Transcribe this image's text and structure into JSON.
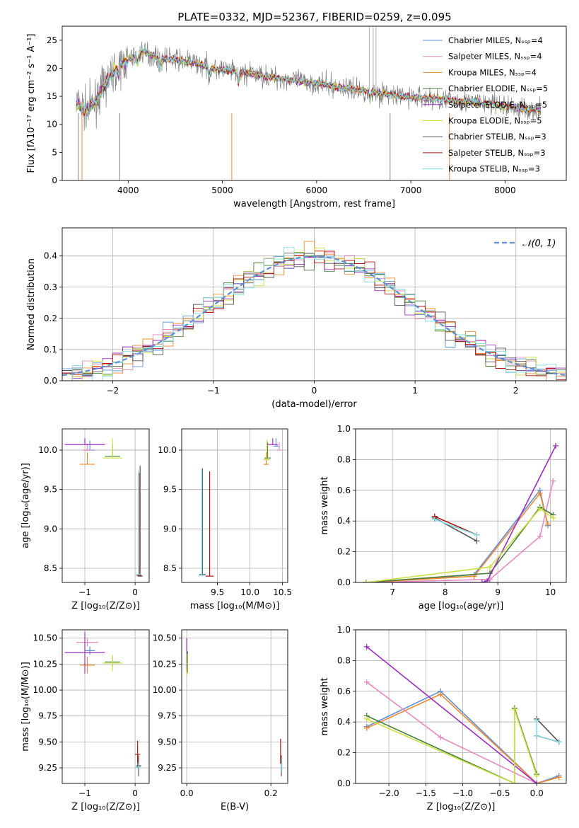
{
  "chart_data": [
    {
      "id": "spectrum",
      "type": "line",
      "title": "PLATE=0332, MJD=52367, FIBERID=0259, z=0.095",
      "xlabel": "wavelength [Angstrom, rest frame]",
      "ylabel": "Flux [fλ10⁻¹⁷ erg cm⁻² s⁻¹ A⁻¹]",
      "xlim": [
        3300,
        8650
      ],
      "ylim": [
        0,
        27.5
      ],
      "xticks": [
        4000,
        5000,
        6000,
        7000,
        8000
      ],
      "yticks": [
        0,
        5,
        10,
        15,
        20,
        25
      ],
      "legend_position": "upper right",
      "grid": false,
      "data_color": "#808080",
      "series": [
        {
          "name": "Chabrier MILES, Nₛₛₚ=4",
          "color": "#5b8fd8"
        },
        {
          "name": "Salpeter MILES, Nₛₛₚ=4",
          "color": "#e58ac0"
        },
        {
          "name": "Kroupa MILES, Nₛₛₚ=4",
          "color": "#f08a30"
        },
        {
          "name": "Chabrier ELODIE, Nₛₛₚ=5",
          "color": "#4a7d3c"
        },
        {
          "name": "Salpeter ELODIE, Nₛₛₚ=5",
          "color": "#9b30c0"
        },
        {
          "name": "Kroupa ELODIE, Nₛₛₚ=5",
          "color": "#c8e040"
        },
        {
          "name": "Chabrier STELIB, Nₛₛₚ=3",
          "color": "#555555"
        },
        {
          "name": "Salpeter STELIB, Nₛₛₚ=3",
          "color": "#b01010"
        },
        {
          "name": "Kroupa STELIB, Nₛₛₚ=3",
          "color": "#7fdde4"
        }
      ],
      "envelope": {
        "x": [
          3450,
          3550,
          3650,
          3750,
          3850,
          3950,
          4050,
          4150,
          4300,
          4500,
          4700,
          4900,
          5100,
          5300,
          5500,
          5700,
          5900,
          6100,
          6300,
          6500,
          6700,
          6900,
          7100,
          7300,
          7500,
          7700,
          7900,
          8100,
          8300
        ],
        "y": [
          14,
          12.5,
          14,
          17,
          19.5,
          21,
          22,
          23,
          22,
          21.5,
          21,
          20,
          19.5,
          19,
          18.5,
          18,
          17.5,
          17,
          16.5,
          16,
          15.5,
          15,
          14.8,
          14.5,
          14.2,
          14,
          13.5,
          13,
          12.5
        ]
      }
    },
    {
      "id": "residuals",
      "type": "line",
      "xlabel": "(data-model)/error",
      "ylabel": "Normed distribution",
      "xlim": [
        -2.5,
        2.5
      ],
      "ylim": [
        0,
        0.49
      ],
      "xticks": [
        -2,
        -1,
        0,
        1,
        2
      ],
      "yticks": [
        0.0,
        0.1,
        0.2,
        0.3,
        0.4
      ],
      "grid": true,
      "legend_position": "upper right",
      "reference_curve": {
        "name": "𝒩(0, 1)",
        "color": "#5b8fd8",
        "style": "dashed"
      },
      "bin_width": 0.1
    },
    {
      "id": "age-vs-Z",
      "type": "scatter",
      "xlabel": "Z [log₁₀(Z/Z⊙)]",
      "ylabel": "age  [log₁₀(age/yr)]",
      "xlim": [
        -1.45,
        0.28
      ],
      "ylim": [
        8.32,
        10.27
      ],
      "xticks": [
        -1,
        0
      ],
      "yticks": [
        8.5,
        9.0,
        9.5,
        10.0
      ],
      "grid": true,
      "points": [
        {
          "s": 0,
          "x": -0.9,
          "xe": 0.1,
          "y": 10.0,
          "ye": 0.12
        },
        {
          "s": 1,
          "x": -0.95,
          "xe": 0.1,
          "y": 10.0,
          "ye": 0.08
        },
        {
          "s": 2,
          "x": -0.95,
          "xe": 0.15,
          "y": 9.82,
          "ye": 0.15
        },
        {
          "s": 3,
          "x": -0.45,
          "xe": 0.15,
          "y": 9.92,
          "ye": 0.15
        },
        {
          "s": 4,
          "x": -1.0,
          "xe": 0.4,
          "y": 10.07,
          "ye": 0.08
        },
        {
          "s": 5,
          "x": -0.45,
          "xe": 0.2,
          "y": 9.9,
          "ye": 0.25
        },
        {
          "s": 6,
          "x": 0.1,
          "xe": 0.05,
          "y": 8.4,
          "ye": 1.4
        },
        {
          "s": 7,
          "x": 0.08,
          "xe": 0.05,
          "y": 8.41,
          "ye": 1.3
        },
        {
          "s": 8,
          "x": 0.07,
          "xe": 0.05,
          "y": 8.42,
          "ye": 1.32
        }
      ]
    },
    {
      "id": "age-vs-mass",
      "type": "scatter",
      "xlabel": "mass [log₁₀(M/M⊙)]",
      "ylabel": "",
      "xlim": [
        8.95,
        10.58
      ],
      "ylim": [
        8.32,
        10.27
      ],
      "xticks": [
        9.5,
        10.0,
        10.5
      ],
      "yticks": [
        8.5,
        9.0,
        9.5,
        10.0
      ],
      "grid": true,
      "points": [
        {
          "s": 0,
          "x": 10.4,
          "xe": 0.04,
          "y": 10.05,
          "ye": 0.1
        },
        {
          "s": 1,
          "x": 10.45,
          "xe": 0.04,
          "y": 10.0,
          "ye": 0.1
        },
        {
          "s": 2,
          "x": 10.25,
          "xe": 0.04,
          "y": 9.82,
          "ye": 0.15
        },
        {
          "s": 3,
          "x": 10.27,
          "xe": 0.05,
          "y": 9.9,
          "ye": 0.2
        },
        {
          "s": 4,
          "x": 10.35,
          "xe": 0.08,
          "y": 10.07,
          "ye": 0.08
        },
        {
          "s": 5,
          "x": 10.26,
          "xe": 0.05,
          "y": 9.88,
          "ye": 0.25
        },
        {
          "s": 6,
          "x": 9.27,
          "xe": 0.05,
          "y": 8.42,
          "ye": 1.35
        },
        {
          "s": 7,
          "x": 9.38,
          "xe": 0.06,
          "y": 8.4,
          "ye": 1.33
        },
        {
          "s": 8,
          "x": 9.26,
          "xe": 0.05,
          "y": 8.41,
          "ye": 1.35
        }
      ]
    },
    {
      "id": "mass-weight-vs-age",
      "type": "line",
      "xlabel": "age  [log₁₀(age/yr)]",
      "ylabel": "mass weight",
      "xlim": [
        6.3,
        10.3
      ],
      "ylim": [
        0,
        1.0
      ],
      "xticks": [
        7,
        8,
        9,
        10
      ],
      "yticks": [
        0.0,
        0.2,
        0.4,
        0.6,
        0.8,
        1.0
      ],
      "grid": true,
      "series": [
        {
          "s": 0,
          "x": [
            6.5,
            8.55,
            9.8,
            9.95
          ],
          "y": [
            0.0,
            0.05,
            0.6,
            0.37
          ]
        },
        {
          "s": 1,
          "x": [
            6.5,
            8.85,
            9.8,
            10.05
          ],
          "y": [
            0.0,
            0.02,
            0.3,
            0.66
          ]
        },
        {
          "s": 2,
          "x": [
            6.5,
            8.55,
            9.8,
            9.95
          ],
          "y": [
            0.0,
            0.04,
            0.58,
            0.38
          ]
        },
        {
          "s": 3,
          "x": [
            6.5,
            8.85,
            9.8,
            10.05
          ],
          "y": [
            0.0,
            0.06,
            0.49,
            0.44
          ]
        },
        {
          "s": 4,
          "x": [
            6.5,
            8.7,
            8.8,
            10.1
          ],
          "y": [
            0.0,
            0.0,
            0.01,
            0.89
          ]
        },
        {
          "s": 5,
          "x": [
            6.5,
            8.85,
            9.8,
            10.05
          ],
          "y": [
            0.0,
            0.1,
            0.48,
            0.42
          ]
        },
        {
          "s": 6,
          "x": [
            7.8,
            8.6
          ],
          "y": [
            0.42,
            0.27
          ]
        },
        {
          "s": 7,
          "x": [
            7.8,
            8.6
          ],
          "y": [
            0.43,
            0.31
          ]
        },
        {
          "s": 8,
          "x": [
            7.8,
            8.6
          ],
          "y": [
            0.41,
            0.31
          ]
        }
      ]
    },
    {
      "id": "mass-vs-Z",
      "type": "scatter",
      "xlabel": "Z [log₁₀(Z/Z⊙)]",
      "ylabel": "mass [log₁₀(M/M⊙)]",
      "xlim": [
        -1.45,
        0.28
      ],
      "ylim": [
        9.1,
        10.58
      ],
      "xticks": [
        -1,
        0
      ],
      "yticks": [
        9.25,
        9.5,
        9.75,
        10.0,
        10.25,
        10.5
      ],
      "grid": true,
      "points": [
        {
          "s": 0,
          "x": -0.9,
          "xe": 0.1,
          "y": 10.38,
          "ye": 0.04
        },
        {
          "s": 1,
          "x": -0.95,
          "xe": 0.22,
          "y": 10.46,
          "ye": 0.04
        },
        {
          "s": 2,
          "x": -0.95,
          "xe": 0.15,
          "y": 10.24,
          "ye": 0.08
        },
        {
          "s": 3,
          "x": -0.45,
          "xe": 0.15,
          "y": 10.27,
          "ye": 0.05
        },
        {
          "s": 4,
          "x": -1.0,
          "xe": 0.4,
          "y": 10.36,
          "ye": 0.2
        },
        {
          "s": 5,
          "x": -0.45,
          "xe": 0.2,
          "y": 10.26,
          "ye": 0.08
        },
        {
          "s": 6,
          "x": 0.07,
          "xe": 0.05,
          "y": 9.27,
          "ye": 0.1
        },
        {
          "s": 7,
          "x": 0.05,
          "xe": 0.05,
          "y": 9.38,
          "ye": 0.13
        },
        {
          "s": 8,
          "x": 0.06,
          "xe": 0.05,
          "y": 9.26,
          "ye": 0.04
        }
      ]
    },
    {
      "id": "mass-vs-EBV",
      "type": "scatter",
      "xlabel": "E(B-V)",
      "ylabel": "",
      "xlim": [
        -0.012,
        0.24
      ],
      "ylim": [
        9.1,
        10.58
      ],
      "xticks": [
        0.0,
        0.2
      ],
      "yticks": [
        9.25,
        9.5,
        9.75,
        10.0,
        10.25,
        10.5
      ],
      "grid": true,
      "points": [
        {
          "s": 0,
          "x": 0.0,
          "xe": 0,
          "y": 10.38,
          "ye": 0.05
        },
        {
          "s": 1,
          "x": 0.0,
          "xe": 0,
          "y": 10.45,
          "ye": 0.05
        },
        {
          "s": 2,
          "x": 0.0,
          "xe": 0,
          "y": 10.24,
          "ye": 0.08
        },
        {
          "s": 3,
          "x": 0.002,
          "xe": 0,
          "y": 10.27,
          "ye": 0.1
        },
        {
          "s": 4,
          "x": 0.0,
          "xe": 0,
          "y": 10.35,
          "ye": 0.15
        },
        {
          "s": 5,
          "x": 0.001,
          "xe": 0,
          "y": 10.25,
          "ye": 0.1
        },
        {
          "s": 6,
          "x": 0.225,
          "xe": 0,
          "y": 9.27,
          "ye": 0.1
        },
        {
          "s": 7,
          "x": 0.223,
          "xe": 0,
          "y": 9.41,
          "ye": 0.12
        },
        {
          "s": 8,
          "x": 0.226,
          "xe": 0,
          "y": 9.28,
          "ye": 0.07
        }
      ]
    },
    {
      "id": "mass-weight-vs-Z",
      "type": "line",
      "xlabel": "Z [log₁₀(Z/Z⊙)]",
      "ylabel": "mass weight",
      "xlim": [
        -2.45,
        0.4
      ],
      "ylim": [
        0,
        1.0
      ],
      "xticks": [
        -2.0,
        -1.5,
        -1.0,
        -0.5,
        0.0
      ],
      "yticks": [
        0.0,
        0.2,
        0.4,
        0.6,
        0.8,
        1.0
      ],
      "grid": true,
      "series": [
        {
          "s": 0,
          "x": [
            -2.3,
            -1.3,
            0.0,
            0.3
          ],
          "y": [
            0.37,
            0.6,
            0.0,
            0.05
          ]
        },
        {
          "s": 1,
          "x": [
            -2.3,
            -1.3,
            0.0
          ],
          "y": [
            0.66,
            0.3,
            0.0
          ]
        },
        {
          "s": 2,
          "x": [
            -2.3,
            -1.3,
            0.0,
            0.3
          ],
          "y": [
            0.36,
            0.58,
            0.0,
            0.04
          ]
        },
        {
          "s": 3,
          "x": [
            -2.3,
            -0.3,
            -0.3,
            0.0
          ],
          "y": [
            0.44,
            0.0,
            0.49,
            0.06
          ]
        },
        {
          "s": 4,
          "x": [
            -2.3,
            0.0
          ],
          "y": [
            0.89,
            0.0
          ]
        },
        {
          "s": 5,
          "x": [
            -2.3,
            -0.3,
            -0.3,
            0.0
          ],
          "y": [
            0.42,
            0.0,
            0.48,
            0.05
          ]
        },
        {
          "s": 6,
          "x": [
            0.0,
            0.3
          ],
          "y": [
            0.42,
            0.27
          ]
        },
        {
          "s": 7,
          "x": [
            0.0,
            0.3
          ],
          "y": [
            0.31,
            0.27
          ]
        },
        {
          "s": 8,
          "x": [
            0.0,
            0.0,
            0.3
          ],
          "y": [
            0.41,
            0.31,
            0.27
          ]
        }
      ]
    }
  ]
}
